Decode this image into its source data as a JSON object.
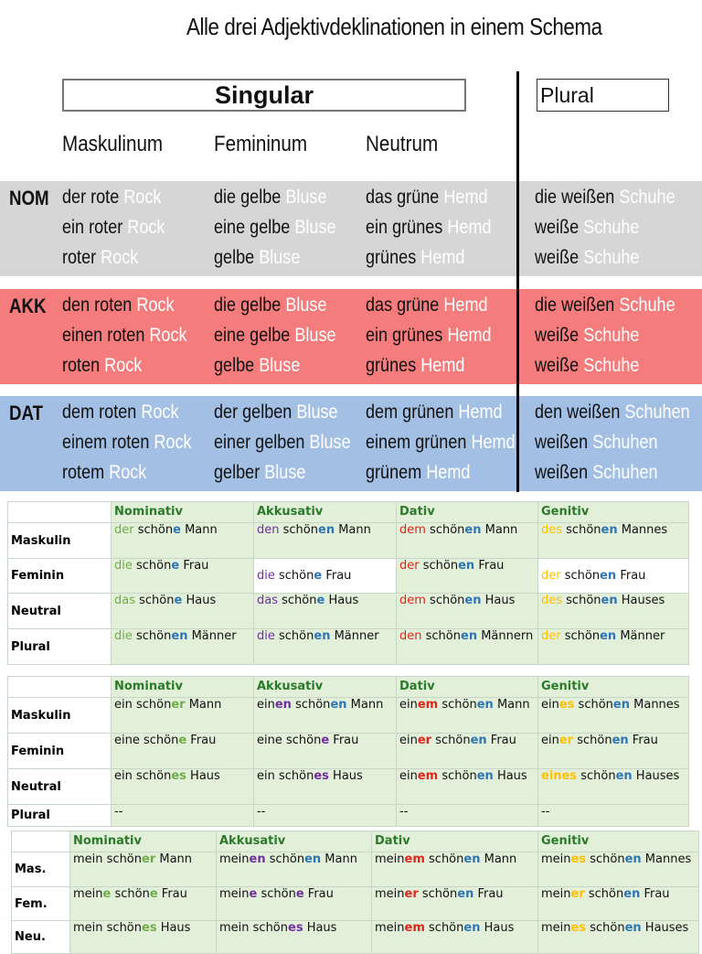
{
  "schema": {
    "title": "Alle drei Adjektivdeklinationen in einem Schema",
    "singular": "Singular",
    "plural": "Plural",
    "genders": [
      "Maskulinum",
      "Femininum",
      "Neutrum"
    ],
    "colors": {
      "nom": "#d6d6d6",
      "akk": "#f47c7c",
      "dat": "#a3c0e4"
    },
    "cases": [
      {
        "label": "NOM",
        "rows": [
          [
            [
              "der rote ",
              "Rock"
            ],
            [
              "die gelbe ",
              "Bluse"
            ],
            [
              "das grüne ",
              "Hemd"
            ],
            [
              "die weißen ",
              "Schuhe"
            ]
          ],
          [
            [
              "ein roter ",
              "Rock"
            ],
            [
              "eine gelbe ",
              "Bluse"
            ],
            [
              "ein grünes ",
              "Hemd"
            ],
            [
              "weiße ",
              "Schuhe"
            ]
          ],
          [
            [
              "roter ",
              "Rock"
            ],
            [
              "gelbe ",
              "Bluse"
            ],
            [
              "grünes ",
              "Hemd"
            ],
            [
              "weiße ",
              "Schuhe"
            ]
          ]
        ]
      },
      {
        "label": "AKK",
        "rows": [
          [
            [
              "den roten ",
              "Rock"
            ],
            [
              "die gelbe ",
              "Bluse"
            ],
            [
              "das grüne ",
              "Hemd"
            ],
            [
              "die weißen ",
              "Schuhe"
            ]
          ],
          [
            [
              "einen roten ",
              "Rock"
            ],
            [
              "eine gelbe ",
              "Bluse"
            ],
            [
              "ein grünes ",
              "Hemd"
            ],
            [
              "weiße ",
              "Schuhe"
            ]
          ],
          [
            [
              "roten ",
              "Rock"
            ],
            [
              "gelbe ",
              "Bluse"
            ],
            [
              "grünes ",
              "Hemd"
            ],
            [
              "weiße ",
              "Schuhe"
            ]
          ]
        ]
      },
      {
        "label": "DAT",
        "rows": [
          [
            [
              "dem roten ",
              "Rock"
            ],
            [
              "der gelben ",
              "Bluse"
            ],
            [
              "dem grünen ",
              "Hemd"
            ],
            [
              "den weißen ",
              "Schuhen"
            ]
          ],
          [
            [
              "einem roten ",
              "Rock"
            ],
            [
              "einer gelben ",
              "Bluse"
            ],
            [
              "einem grünen ",
              "Hemd"
            ],
            [
              "weißen ",
              "Schuhen"
            ]
          ],
          [
            [
              "rotem ",
              "Rock"
            ],
            [
              "gelber ",
              "Bluse"
            ],
            [
              "grünem ",
              "Hemd"
            ],
            [
              "weißen ",
              "Schuhen"
            ]
          ]
        ]
      }
    ]
  },
  "tables": [
    {
      "headers": [
        "",
        "Nominativ",
        "Akkusativ",
        "Dativ",
        "Genitiv"
      ],
      "rows": [
        {
          "label": "Maskulin",
          "cells": [
            [
              [
                "der",
                "c-g"
              ],
              [
                " schön",
                ""
              ],
              [
                "e",
                "c-b"
              ],
              [
                " Mann",
                ""
              ]
            ],
            [
              [
                "den",
                "c-p"
              ],
              [
                " schön",
                ""
              ],
              [
                "en",
                "c-b"
              ],
              [
                " Mann",
                ""
              ]
            ],
            [
              [
                "dem",
                "c-r"
              ],
              [
                " schön",
                ""
              ],
              [
                "en",
                "c-b"
              ],
              [
                " Mann",
                ""
              ]
            ],
            [
              [
                "des",
                "c-o"
              ],
              [
                " schön",
                ""
              ],
              [
                "en",
                "c-b"
              ],
              [
                " Mannes",
                ""
              ]
            ]
          ]
        },
        {
          "label": "Feminin",
          "cells": [
            [
              [
                "die",
                "c-g"
              ],
              [
                " schön",
                ""
              ],
              [
                "e",
                "c-b"
              ],
              [
                " Frau",
                ""
              ]
            ],
            [
              [
                "die",
                "c-p"
              ],
              [
                " schön",
                ""
              ],
              [
                "e",
                "c-b"
              ],
              [
                " Frau",
                ""
              ]
            ],
            [
              [
                "der",
                "c-r"
              ],
              [
                " schön",
                ""
              ],
              [
                "en",
                "c-b"
              ],
              [
                " Frau",
                ""
              ]
            ],
            [
              [
                "der",
                "c-o"
              ],
              [
                " schön",
                ""
              ],
              [
                "en",
                "c-b"
              ],
              [
                " Frau",
                ""
              ]
            ]
          ]
        },
        {
          "label": "Neutral",
          "cells": [
            [
              [
                "das",
                "c-g"
              ],
              [
                " schön",
                ""
              ],
              [
                "e",
                "c-b"
              ],
              [
                " Haus",
                ""
              ]
            ],
            [
              [
                "das",
                "c-p"
              ],
              [
                " schön",
                ""
              ],
              [
                "e",
                "c-b"
              ],
              [
                " Haus",
                ""
              ]
            ],
            [
              [
                "dem",
                "c-r"
              ],
              [
                " schön",
                ""
              ],
              [
                "en",
                "c-b"
              ],
              [
                " Haus",
                ""
              ]
            ],
            [
              [
                "des",
                "c-o"
              ],
              [
                " schön",
                ""
              ],
              [
                "en",
                "c-b"
              ],
              [
                " Hauses",
                ""
              ]
            ]
          ]
        },
        {
          "label": "Plural",
          "cells": [
            [
              [
                "die",
                "c-g"
              ],
              [
                " schön",
                ""
              ],
              [
                "en",
                "c-b"
              ],
              [
                " Männer",
                ""
              ]
            ],
            [
              [
                "die",
                "c-p"
              ],
              [
                " schön",
                ""
              ],
              [
                "en",
                "c-b"
              ],
              [
                " Männer",
                ""
              ]
            ],
            [
              [
                "den",
                "c-r"
              ],
              [
                " schön",
                ""
              ],
              [
                "en",
                "c-b"
              ],
              [
                " Männern",
                ""
              ]
            ],
            [
              [
                "der",
                "c-o"
              ],
              [
                " schön",
                ""
              ],
              [
                "en",
                "c-b"
              ],
              [
                " Männer",
                ""
              ]
            ]
          ]
        }
      ]
    },
    {
      "headers": [
        "",
        "Nominativ",
        "Akkusativ",
        "Dativ",
        "Genitiv"
      ],
      "rows": [
        {
          "label": "Maskulin",
          "cells": [
            [
              [
                "ein schön",
                ""
              ],
              [
                "er",
                "c-gb"
              ],
              [
                " Mann",
                ""
              ]
            ],
            [
              [
                "ein",
                ""
              ],
              [
                "en",
                "c-pb"
              ],
              [
                " schön",
                ""
              ],
              [
                "en",
                "c-b"
              ],
              [
                " Mann",
                ""
              ]
            ],
            [
              [
                "ein",
                ""
              ],
              [
                "em",
                "c-rb"
              ],
              [
                " schön",
                ""
              ],
              [
                "en",
                "c-b"
              ],
              [
                " Mann",
                ""
              ]
            ],
            [
              [
                "ein",
                ""
              ],
              [
                "es",
                "c-ob"
              ],
              [
                " schön",
                ""
              ],
              [
                "en",
                "c-b"
              ],
              [
                " Mannes",
                ""
              ]
            ]
          ]
        },
        {
          "label": "Feminin",
          "cells": [
            [
              [
                "eine schön",
                ""
              ],
              [
                "e",
                "c-gb"
              ],
              [
                " Frau",
                ""
              ]
            ],
            [
              [
                "eine schön",
                ""
              ],
              [
                "e",
                "c-pb"
              ],
              [
                " Frau",
                ""
              ]
            ],
            [
              [
                "ein",
                ""
              ],
              [
                "er",
                "c-rb"
              ],
              [
                " schön",
                ""
              ],
              [
                "en",
                "c-b"
              ],
              [
                " Frau",
                ""
              ]
            ],
            [
              [
                "ein",
                ""
              ],
              [
                "er",
                "c-ob"
              ],
              [
                " schön",
                ""
              ],
              [
                "en",
                "c-b"
              ],
              [
                " Frau",
                ""
              ]
            ]
          ]
        },
        {
          "label": "Neutral",
          "cells": [
            [
              [
                "ein schön",
                ""
              ],
              [
                "es",
                "c-gb"
              ],
              [
                " Haus",
                ""
              ]
            ],
            [
              [
                "ein schön",
                ""
              ],
              [
                "es",
                "c-pb"
              ],
              [
                " Haus",
                ""
              ]
            ],
            [
              [
                "ein",
                ""
              ],
              [
                "em",
                "c-rb"
              ],
              [
                " schön",
                ""
              ],
              [
                "en",
                "c-b"
              ],
              [
                " Haus",
                ""
              ]
            ],
            [
              [
                "eines",
                "c-ob"
              ],
              [
                " schön",
                ""
              ],
              [
                "en",
                "c-b"
              ],
              [
                " Hauses",
                ""
              ]
            ]
          ]
        },
        {
          "label": "Plural",
          "cells": [
            [
              [
                "--",
                ""
              ]
            ],
            [
              [
                "--",
                ""
              ]
            ],
            [
              [
                "--",
                ""
              ]
            ],
            [
              [
                "--",
                ""
              ]
            ]
          ]
        }
      ]
    },
    {
      "headers": [
        "",
        "Nominativ",
        "Akkusativ",
        "Dativ",
        "Genitiv"
      ],
      "rows": [
        {
          "label": "Mas.",
          "cells": [
            [
              [
                "mein schön",
                ""
              ],
              [
                "er",
                "c-gb"
              ],
              [
                " Mann",
                ""
              ]
            ],
            [
              [
                "mein",
                ""
              ],
              [
                "en",
                "c-pb"
              ],
              [
                " schön",
                ""
              ],
              [
                "en",
                "c-b"
              ],
              [
                " Mann",
                ""
              ]
            ],
            [
              [
                "mein",
                ""
              ],
              [
                "em",
                "c-rb"
              ],
              [
                " schön",
                ""
              ],
              [
                "en",
                "c-b"
              ],
              [
                " Mann",
                ""
              ]
            ],
            [
              [
                "mein",
                ""
              ],
              [
                "es",
                "c-ob"
              ],
              [
                " schön",
                ""
              ],
              [
                "en",
                "c-b"
              ],
              [
                " Mannes",
                ""
              ]
            ]
          ]
        },
        {
          "label": "Fem.",
          "cells": [
            [
              [
                "mein",
                ""
              ],
              [
                "e",
                "c-gb"
              ],
              [
                " schön",
                ""
              ],
              [
                "e",
                "c-gb"
              ],
              [
                " Frau",
                ""
              ]
            ],
            [
              [
                "mein",
                ""
              ],
              [
                "e",
                "c-pb"
              ],
              [
                " schön",
                ""
              ],
              [
                "e",
                "c-pb"
              ],
              [
                " Frau",
                ""
              ]
            ],
            [
              [
                "mein",
                ""
              ],
              [
                "er",
                "c-rb"
              ],
              [
                " schön",
                ""
              ],
              [
                "en",
                "c-b"
              ],
              [
                " Frau",
                ""
              ]
            ],
            [
              [
                "mein",
                ""
              ],
              [
                "er",
                "c-ob"
              ],
              [
                " schön",
                ""
              ],
              [
                "en",
                "c-b"
              ],
              [
                " Frau",
                ""
              ]
            ]
          ]
        },
        {
          "label": "Neu.",
          "cells": [
            [
              [
                "mein schön",
                ""
              ],
              [
                "es",
                "c-gb"
              ],
              [
                " Haus",
                ""
              ]
            ],
            [
              [
                "mein schön",
                ""
              ],
              [
                "es",
                "c-pb"
              ],
              [
                " Haus",
                ""
              ]
            ],
            [
              [
                "mein",
                ""
              ],
              [
                "em",
                "c-rb"
              ],
              [
                " schön",
                ""
              ],
              [
                "en",
                "c-b"
              ],
              [
                " Haus",
                ""
              ]
            ],
            [
              [
                "mein",
                ""
              ],
              [
                "es",
                "c-ob"
              ],
              [
                " schön",
                ""
              ],
              [
                "en",
                "c-b"
              ],
              [
                " Hauses",
                ""
              ]
            ]
          ]
        }
      ]
    }
  ]
}
